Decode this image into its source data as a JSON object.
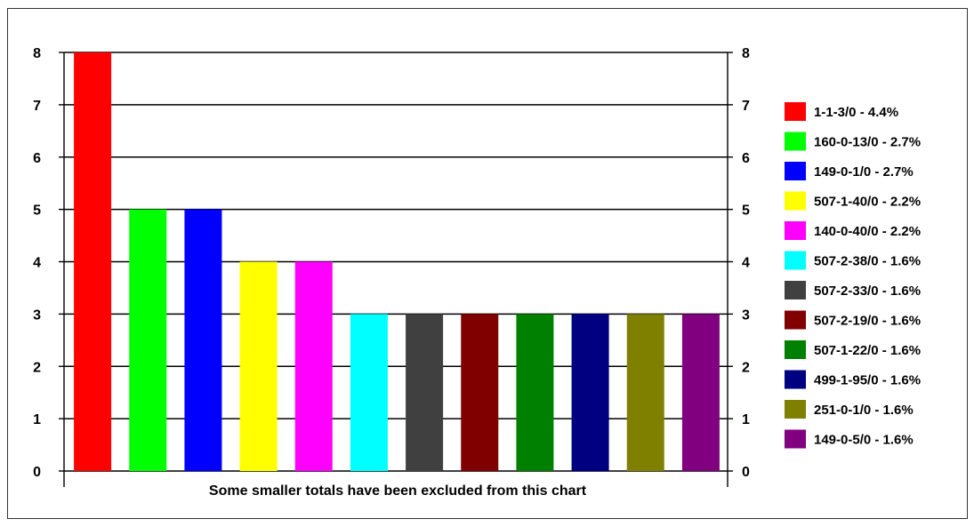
{
  "chart_data": {
    "type": "bar",
    "categories": [
      "1-1-3/0",
      "160-0-13/0",
      "149-0-1/0",
      "507-1-40/0",
      "140-0-40/0",
      "507-2-38/0",
      "507-2-33/0",
      "507-2-19/0",
      "507-1-22/0",
      "499-1-95/0",
      "251-0-1/0",
      "149-0-5/0"
    ],
    "values": [
      8,
      5,
      5,
      4,
      4,
      3,
      3,
      3,
      3,
      3,
      3,
      3
    ],
    "colors": [
      "#ff0000",
      "#00ff00",
      "#0000ff",
      "#ffff00",
      "#ff00ff",
      "#00ffff",
      "#404040",
      "#800000",
      "#008000",
      "#000080",
      "#808000",
      "#800080"
    ],
    "ylim": [
      0,
      8
    ],
    "yticks": [
      "0",
      "1",
      "2",
      "3",
      "4",
      "5",
      "6",
      "7",
      "8"
    ],
    "grid": true,
    "legend_position": "right",
    "legend": [
      "1-1-3/0 - 4.4%",
      "160-0-13/0 - 2.7%",
      "149-0-1/0 - 2.7%",
      "507-1-40/0 - 2.2%",
      "140-0-40/0 - 2.2%",
      "507-2-38/0 - 1.6%",
      "507-2-33/0 - 1.6%",
      "507-2-19/0 - 1.6%",
      "507-1-22/0 - 1.6%",
      "499-1-95/0 - 1.6%",
      "251-0-1/0 - 1.6%",
      "149-0-5/0 - 1.6%"
    ],
    "note": "Some smaller totals have been excluded from this chart"
  }
}
